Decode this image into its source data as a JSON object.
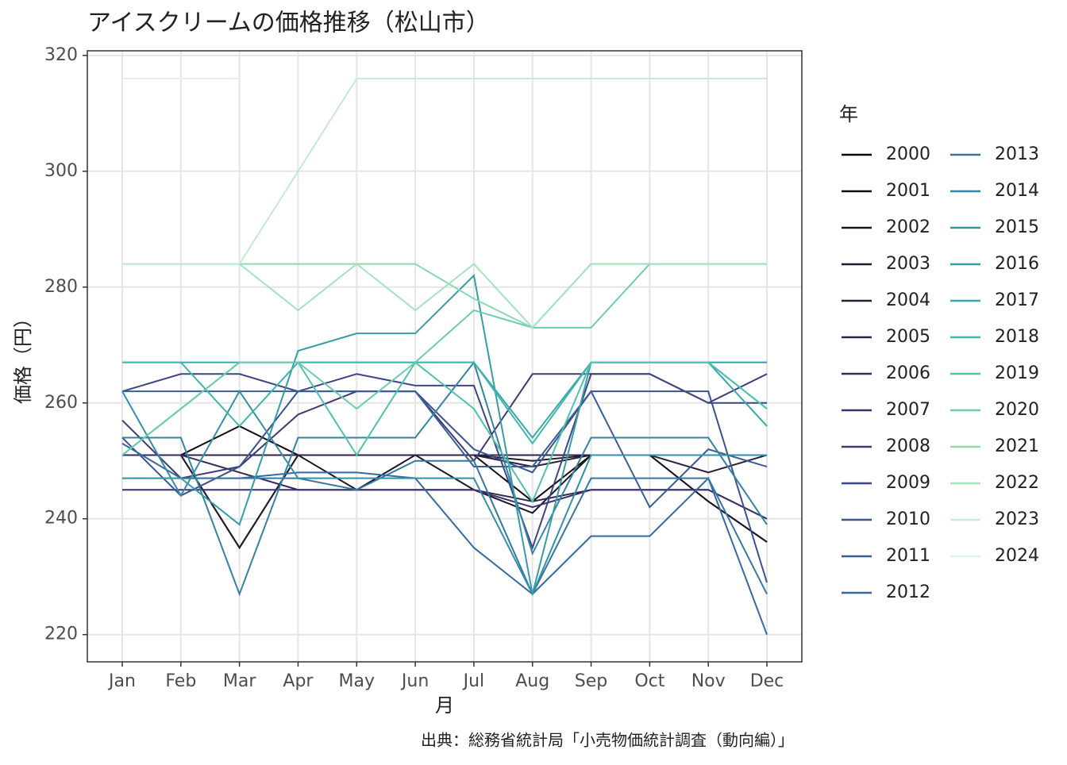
{
  "chart_data": {
    "type": "line",
    "title": "アイスクリームの価格推移（松山市）",
    "x_label": "月",
    "y_label": "価格（円）",
    "caption": "出典：総務省統計局「小売物価統計調査（動向編）」",
    "legend_title": "年",
    "categories": [
      "Jan",
      "Feb",
      "Mar",
      "Apr",
      "May",
      "Jun",
      "Jul",
      "Aug",
      "Sep",
      "Oct",
      "Nov",
      "Dec"
    ],
    "ylim": [
      215.3,
      320.8
    ],
    "yticks": [
      220,
      240,
      260,
      280,
      300,
      320
    ],
    "grid": true,
    "legend": "right",
    "series": [
      {
        "name": "2000",
        "color": "#0b0405",
        "values": [
          251,
          251,
          251,
          251,
          251,
          251,
          251,
          251,
          251,
          251,
          251,
          251
        ]
      },
      {
        "name": "2001",
        "color": "#150c15",
        "values": [
          251,
          251,
          256,
          251,
          251,
          251,
          251,
          243,
          251,
          251,
          243,
          236
        ]
      },
      {
        "name": "2002",
        "color": "#1d1426",
        "values": [
          251,
          251,
          235,
          251,
          245,
          251,
          245,
          241,
          251,
          251,
          243,
          236
        ]
      },
      {
        "name": "2003",
        "color": "#241a30",
        "values": [
          251,
          251,
          235,
          251,
          251,
          251,
          251,
          250,
          251,
          251,
          251,
          251
        ]
      },
      {
        "name": "2004",
        "color": "#2a1d3a",
        "values": [
          251,
          251,
          251,
          251,
          251,
          251,
          251,
          249,
          251,
          251,
          248,
          251
        ]
      },
      {
        "name": "2005",
        "color": "#2f2245",
        "values": [
          251,
          251,
          251,
          251,
          251,
          251,
          251,
          251,
          251,
          251,
          251,
          251
        ]
      },
      {
        "name": "2006",
        "color": "#342a55",
        "values": [
          251,
          251,
          248,
          245,
          245,
          245,
          245,
          243,
          245,
          245,
          245,
          240
        ]
      },
      {
        "name": "2007",
        "color": "#3a3268",
        "values": [
          245,
          245,
          245,
          245,
          245,
          245,
          245,
          242,
          245,
          245,
          245,
          240
        ]
      },
      {
        "name": "2008",
        "color": "#3e3a78",
        "values": [
          257,
          247,
          249,
          258,
          262,
          262,
          250,
          265,
          265,
          265,
          260,
          265
        ]
      },
      {
        "name": "2009",
        "color": "#3d4583",
        "values": [
          262,
          265,
          265,
          262,
          265,
          263,
          263,
          235,
          265,
          265,
          260,
          260
        ]
      },
      {
        "name": "2010",
        "color": "#3b528e",
        "values": [
          254,
          244,
          249,
          262,
          262,
          262,
          252,
          248,
          262,
          262,
          262,
          229
        ]
      },
      {
        "name": "2011",
        "color": "#385e99",
        "values": [
          262,
          262,
          262,
          262,
          262,
          262,
          249,
          249,
          262,
          242,
          252,
          249
        ]
      },
      {
        "name": "2012",
        "color": "#366a9f",
        "values": [
          253,
          247,
          247,
          248,
          248,
          247,
          235,
          227,
          237,
          237,
          247,
          220
        ]
      },
      {
        "name": "2013",
        "color": "#3577a2",
        "values": [
          247,
          247,
          247,
          247,
          245,
          250,
          250,
          227,
          247,
          247,
          247,
          227
        ]
      },
      {
        "name": "2014",
        "color": "#3483a5",
        "values": [
          254,
          254,
          227,
          254,
          254,
          254,
          267,
          234,
          254,
          254,
          254,
          239
        ]
      },
      {
        "name": "2015",
        "color": "#348fa7",
        "values": [
          262,
          244,
          262,
          247,
          247,
          247,
          247,
          227,
          251,
          251,
          251,
          251
        ]
      },
      {
        "name": "2016",
        "color": "#379ba9",
        "values": [
          247,
          247,
          239,
          269,
          272,
          272,
          282,
          227,
          267,
          267,
          267,
          267
        ]
      },
      {
        "name": "2017",
        "color": "#3ba6ab",
        "values": [
          267,
          267,
          267,
          267,
          267,
          267,
          267,
          254,
          267,
          267,
          267,
          256
        ]
      },
      {
        "name": "2018",
        "color": "#40b7ad",
        "values": [
          267,
          267,
          256,
          267,
          267,
          267,
          267,
          253,
          267,
          267,
          267,
          259
        ]
      },
      {
        "name": "2019",
        "color": "#4fc2ad",
        "values": [
          251,
          259,
          267,
          267,
          251,
          267,
          259,
          243,
          267,
          267,
          267,
          259
        ]
      },
      {
        "name": "2020",
        "color": "#6acdaf",
        "values": [
          251,
          259,
          267,
          267,
          259,
          267,
          276,
          273,
          273,
          284,
          284,
          284
        ]
      },
      {
        "name": "2021",
        "color": "#8ad9b1",
        "values": [
          284,
          284,
          284,
          284,
          284,
          284,
          278,
          273,
          284,
          284,
          284,
          284
        ]
      },
      {
        "name": "2022",
        "color": "#a6e2bf",
        "values": [
          284,
          284,
          284,
          276,
          284,
          276,
          284,
          273,
          284,
          284,
          284,
          284
        ]
      },
      {
        "name": "2023",
        "color": "#c2ebd2",
        "values": [
          284,
          284,
          284,
          300,
          316,
          316,
          316,
          316,
          316,
          316,
          316,
          316
        ]
      },
      {
        "name": "2024",
        "color": "#def5e5",
        "values": [
          316,
          316,
          316,
          null,
          null,
          null,
          null,
          null,
          null,
          null,
          null,
          null
        ]
      }
    ]
  }
}
